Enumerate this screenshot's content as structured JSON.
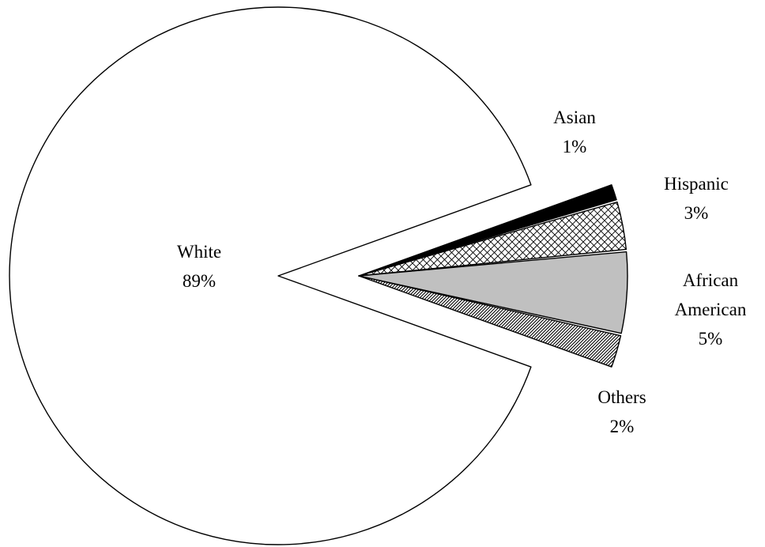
{
  "chart_data": {
    "type": "pie",
    "title": "",
    "slices": [
      {
        "category": [
          "White"
        ],
        "percent_label": "89%",
        "value": 89,
        "fill": "none"
      },
      {
        "category": [
          "Asian"
        ],
        "percent_label": "1%",
        "value": 1,
        "fill": "solid-black"
      },
      {
        "category": [
          "Hispanic"
        ],
        "percent_label": "3%",
        "value": 3,
        "fill": "crosshatch"
      },
      {
        "category": [
          "African",
          "American"
        ],
        "percent_label": "5%",
        "value": 5,
        "fill": "solid-gray"
      },
      {
        "category": [
          "Others"
        ],
        "percent_label": "2%",
        "value": 2,
        "fill": "diagonal-hatch"
      }
    ],
    "exploded_slices": [
      "Asian",
      "Hispanic",
      "African American",
      "Others"
    ],
    "legend": "none",
    "colors": {
      "outline": "#000000",
      "white": "#ffffff",
      "gray": "#c0c0c0",
      "black": "#000000"
    }
  }
}
